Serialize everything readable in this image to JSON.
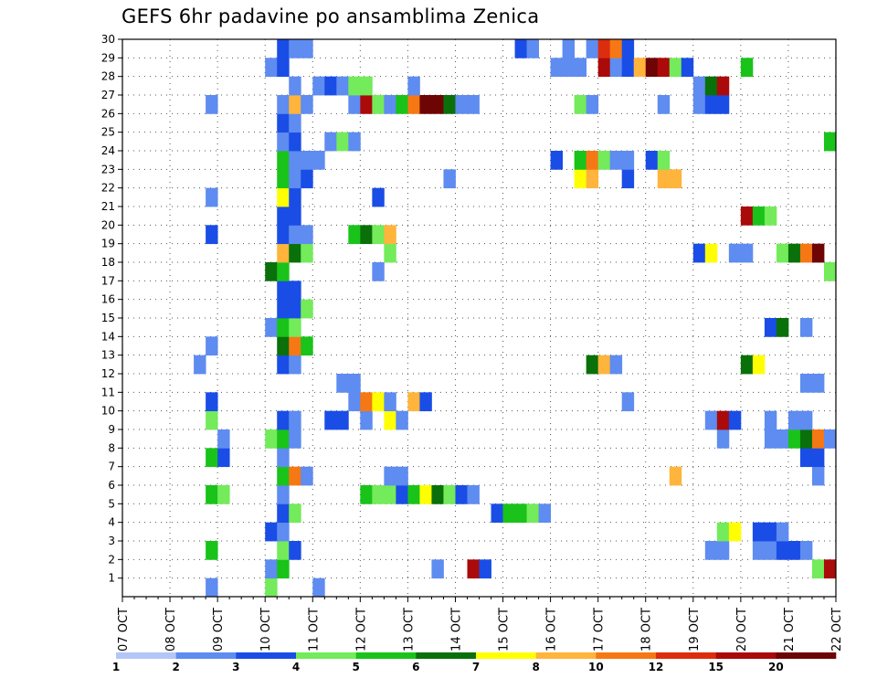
{
  "chart_data": {
    "type": "heatmap",
    "title": "GEFS 6hr padavine po ansamblima Zenica",
    "xlabel": "",
    "ylabel": "",
    "x_tick_labels": [
      "07 OCT",
      "08 OCT",
      "09 OCT",
      "10 OCT",
      "11 OCT",
      "12 OCT",
      "13 OCT",
      "14 OCT",
      "15 OCT",
      "16 OCT",
      "17 OCT",
      "18 OCT",
      "19 OCT",
      "20 OCT",
      "21 OCT",
      "22 OCT"
    ],
    "xlim": [
      0,
      60
    ],
    "x_unit": "6-hour steps from 07 OCT 00Z",
    "y_tick_labels": [
      "1",
      "2",
      "3",
      "4",
      "5",
      "6",
      "7",
      "8",
      "9",
      "10",
      "11",
      "12",
      "13",
      "14",
      "15",
      "16",
      "17",
      "18",
      "19",
      "20",
      "21",
      "22",
      "23",
      "24",
      "25",
      "26",
      "27",
      "28",
      "29",
      "30"
    ],
    "ylim": [
      0,
      30
    ],
    "grid": true,
    "colorbar": {
      "levels": [
        "1",
        "2",
        "3",
        "4",
        "5",
        "6",
        "7",
        "8",
        "10",
        "12",
        "15",
        "20"
      ],
      "colors": [
        "#b3c6f7",
        "#5e8cf0",
        "#1a4de6",
        "#73eb5a",
        "#19c319",
        "#0a700a",
        "#ffff00",
        "#ffb43c",
        "#f57814",
        "#dc2d0f",
        "#aa0a0a",
        "#6e0505"
      ]
    },
    "cells": [
      [
        1,
        7,
        1
      ],
      [
        1,
        12,
        3
      ],
      [
        1,
        16,
        1
      ],
      [
        2,
        12,
        1
      ],
      [
        2,
        13,
        4
      ],
      [
        2,
        26,
        1
      ],
      [
        2,
        29,
        10
      ],
      [
        2,
        30,
        2
      ],
      [
        2,
        58,
        3
      ],
      [
        2,
        59,
        10
      ],
      [
        3,
        7,
        4
      ],
      [
        3,
        13,
        3
      ],
      [
        3,
        14,
        2
      ],
      [
        3,
        49,
        1
      ],
      [
        3,
        50,
        1
      ],
      [
        3,
        53,
        1
      ],
      [
        3,
        54,
        1
      ],
      [
        3,
        55,
        2
      ],
      [
        3,
        56,
        2
      ],
      [
        3,
        57,
        1
      ],
      [
        4,
        12,
        2
      ],
      [
        4,
        13,
        1
      ],
      [
        4,
        50,
        3
      ],
      [
        4,
        51,
        6
      ],
      [
        4,
        53,
        2
      ],
      [
        4,
        54,
        2
      ],
      [
        4,
        55,
        1
      ],
      [
        5,
        13,
        2
      ],
      [
        5,
        14,
        3
      ],
      [
        5,
        31,
        2
      ],
      [
        5,
        32,
        4
      ],
      [
        5,
        33,
        4
      ],
      [
        5,
        34,
        3
      ],
      [
        5,
        35,
        1
      ],
      [
        6,
        7,
        4
      ],
      [
        6,
        8,
        3
      ],
      [
        6,
        13,
        1
      ],
      [
        6,
        20,
        4
      ],
      [
        6,
        21,
        3
      ],
      [
        6,
        22,
        3
      ],
      [
        6,
        23,
        2
      ],
      [
        6,
        24,
        4
      ],
      [
        6,
        25,
        6
      ],
      [
        6,
        26,
        5
      ],
      [
        6,
        27,
        3
      ],
      [
        6,
        28,
        2
      ],
      [
        6,
        29,
        1
      ],
      [
        7,
        13,
        4
      ],
      [
        7,
        14,
        8
      ],
      [
        7,
        15,
        1
      ],
      [
        7,
        22,
        1
      ],
      [
        7,
        23,
        1
      ],
      [
        7,
        46,
        7
      ],
      [
        7,
        58,
        1
      ],
      [
        8,
        7,
        4
      ],
      [
        8,
        8,
        2
      ],
      [
        8,
        13,
        1
      ],
      [
        8,
        57,
        2
      ],
      [
        8,
        58,
        2
      ],
      [
        9,
        8,
        1
      ],
      [
        9,
        12,
        3
      ],
      [
        9,
        13,
        4
      ],
      [
        9,
        14,
        1
      ],
      [
        9,
        50,
        1
      ],
      [
        9,
        54,
        1
      ],
      [
        9,
        55,
        1
      ],
      [
        9,
        56,
        4
      ],
      [
        9,
        57,
        5
      ],
      [
        9,
        58,
        8
      ],
      [
        9,
        59,
        1
      ],
      [
        10,
        7,
        3
      ],
      [
        10,
        13,
        2
      ],
      [
        10,
        14,
        1
      ],
      [
        10,
        17,
        2
      ],
      [
        10,
        18,
        2
      ],
      [
        10,
        20,
        1
      ],
      [
        10,
        22,
        6
      ],
      [
        10,
        23,
        1
      ],
      [
        10,
        49,
        1
      ],
      [
        10,
        50,
        10
      ],
      [
        10,
        51,
        2
      ],
      [
        10,
        54,
        1
      ],
      [
        10,
        56,
        1
      ],
      [
        10,
        57,
        1
      ],
      [
        11,
        7,
        2
      ],
      [
        11,
        19,
        1
      ],
      [
        11,
        20,
        8
      ],
      [
        11,
        21,
        6
      ],
      [
        11,
        22,
        1
      ],
      [
        11,
        24,
        7
      ],
      [
        11,
        25,
        2
      ],
      [
        11,
        42,
        1
      ],
      [
        12,
        18,
        1
      ],
      [
        12,
        19,
        1
      ],
      [
        12,
        57,
        1
      ],
      [
        12,
        58,
        1
      ],
      [
        13,
        6,
        1
      ],
      [
        13,
        13,
        2
      ],
      [
        13,
        14,
        1
      ],
      [
        13,
        39,
        5
      ],
      [
        13,
        40,
        7
      ],
      [
        13,
        41,
        1
      ],
      [
        13,
        52,
        5
      ],
      [
        13,
        53,
        6
      ],
      [
        14,
        7,
        1
      ],
      [
        14,
        13,
        5
      ],
      [
        14,
        14,
        8
      ],
      [
        14,
        15,
        4
      ],
      [
        15,
        12,
        1
      ],
      [
        15,
        13,
        4
      ],
      [
        15,
        14,
        3
      ],
      [
        15,
        54,
        2
      ],
      [
        15,
        55,
        5
      ],
      [
        15,
        57,
        1
      ],
      [
        16,
        13,
        2
      ],
      [
        16,
        14,
        2
      ],
      [
        16,
        15,
        3
      ],
      [
        17,
        13,
        2
      ],
      [
        17,
        14,
        2
      ],
      [
        18,
        12,
        5
      ],
      [
        18,
        13,
        4
      ],
      [
        18,
        21,
        1
      ],
      [
        18,
        59,
        3
      ],
      [
        19,
        13,
        7
      ],
      [
        19,
        14,
        5
      ],
      [
        19,
        15,
        3
      ],
      [
        19,
        22,
        3
      ],
      [
        19,
        48,
        2
      ],
      [
        19,
        49,
        6
      ],
      [
        19,
        51,
        1
      ],
      [
        19,
        52,
        1
      ],
      [
        19,
        55,
        3
      ],
      [
        19,
        56,
        5
      ],
      [
        19,
        57,
        8
      ],
      [
        19,
        58,
        11
      ],
      [
        20,
        7,
        2
      ],
      [
        20,
        13,
        2
      ],
      [
        20,
        14,
        1
      ],
      [
        20,
        15,
        1
      ],
      [
        20,
        19,
        4
      ],
      [
        20,
        20,
        5
      ],
      [
        20,
        21,
        3
      ],
      [
        20,
        22,
        7
      ],
      [
        21,
        13,
        2
      ],
      [
        21,
        14,
        2
      ],
      [
        21,
        52,
        10
      ],
      [
        21,
        53,
        4
      ],
      [
        21,
        54,
        3
      ],
      [
        22,
        7,
        1
      ],
      [
        22,
        13,
        6
      ],
      [
        22,
        14,
        2
      ],
      [
        22,
        21,
        2
      ],
      [
        23,
        13,
        4
      ],
      [
        23,
        14,
        1
      ],
      [
        23,
        15,
        2
      ],
      [
        23,
        27,
        1
      ],
      [
        23,
        38,
        6
      ],
      [
        23,
        39,
        7
      ],
      [
        23,
        42,
        2
      ],
      [
        23,
        45,
        7
      ],
      [
        23,
        46,
        7
      ],
      [
        24,
        13,
        4
      ],
      [
        24,
        14,
        1
      ],
      [
        24,
        15,
        1
      ],
      [
        24,
        16,
        1
      ],
      [
        24,
        36,
        2
      ],
      [
        24,
        38,
        4
      ],
      [
        24,
        39,
        8
      ],
      [
        24,
        40,
        3
      ],
      [
        24,
        41,
        1
      ],
      [
        24,
        42,
        1
      ],
      [
        24,
        44,
        2
      ],
      [
        24,
        45,
        3
      ],
      [
        25,
        13,
        1
      ],
      [
        25,
        14,
        2
      ],
      [
        25,
        17,
        1
      ],
      [
        25,
        18,
        3
      ],
      [
        25,
        19,
        1
      ],
      [
        25,
        59,
        4
      ],
      [
        26,
        13,
        2
      ],
      [
        26,
        14,
        1
      ],
      [
        27,
        7,
        1
      ],
      [
        27,
        13,
        1
      ],
      [
        27,
        14,
        7
      ],
      [
        27,
        15,
        1
      ],
      [
        27,
        19,
        1
      ],
      [
        27,
        20,
        10
      ],
      [
        27,
        21,
        3
      ],
      [
        27,
        22,
        1
      ],
      [
        27,
        23,
        4
      ],
      [
        27,
        24,
        8
      ],
      [
        27,
        25,
        11
      ],
      [
        27,
        26,
        11
      ],
      [
        27,
        27,
        5
      ],
      [
        27,
        28,
        1
      ],
      [
        27,
        29,
        1
      ],
      [
        27,
        38,
        3
      ],
      [
        27,
        39,
        1
      ],
      [
        27,
        45,
        1
      ],
      [
        27,
        48,
        1
      ],
      [
        27,
        49,
        2
      ],
      [
        27,
        50,
        2
      ],
      [
        28,
        14,
        1
      ],
      [
        28,
        16,
        1
      ],
      [
        28,
        17,
        2
      ],
      [
        28,
        18,
        1
      ],
      [
        28,
        19,
        3
      ],
      [
        28,
        20,
        3
      ],
      [
        28,
        24,
        1
      ],
      [
        28,
        48,
        1
      ],
      [
        28,
        49,
        5
      ],
      [
        28,
        50,
        10
      ],
      [
        29,
        12,
        1
      ],
      [
        29,
        13,
        2
      ],
      [
        29,
        36,
        1
      ],
      [
        29,
        37,
        1
      ],
      [
        29,
        38,
        1
      ],
      [
        29,
        40,
        10
      ],
      [
        29,
        41,
        1
      ],
      [
        29,
        42,
        2
      ],
      [
        29,
        43,
        7
      ],
      [
        29,
        44,
        11
      ],
      [
        29,
        45,
        10
      ],
      [
        29,
        46,
        3
      ],
      [
        29,
        47,
        2
      ],
      [
        29,
        52,
        4
      ],
      [
        30,
        13,
        2
      ],
      [
        30,
        14,
        1
      ],
      [
        30,
        15,
        1
      ],
      [
        30,
        33,
        2
      ],
      [
        30,
        34,
        1
      ],
      [
        30,
        37,
        1
      ],
      [
        30,
        39,
        1
      ],
      [
        30,
        40,
        9
      ],
      [
        30,
        41,
        8
      ],
      [
        30,
        42,
        2
      ]
    ]
  }
}
